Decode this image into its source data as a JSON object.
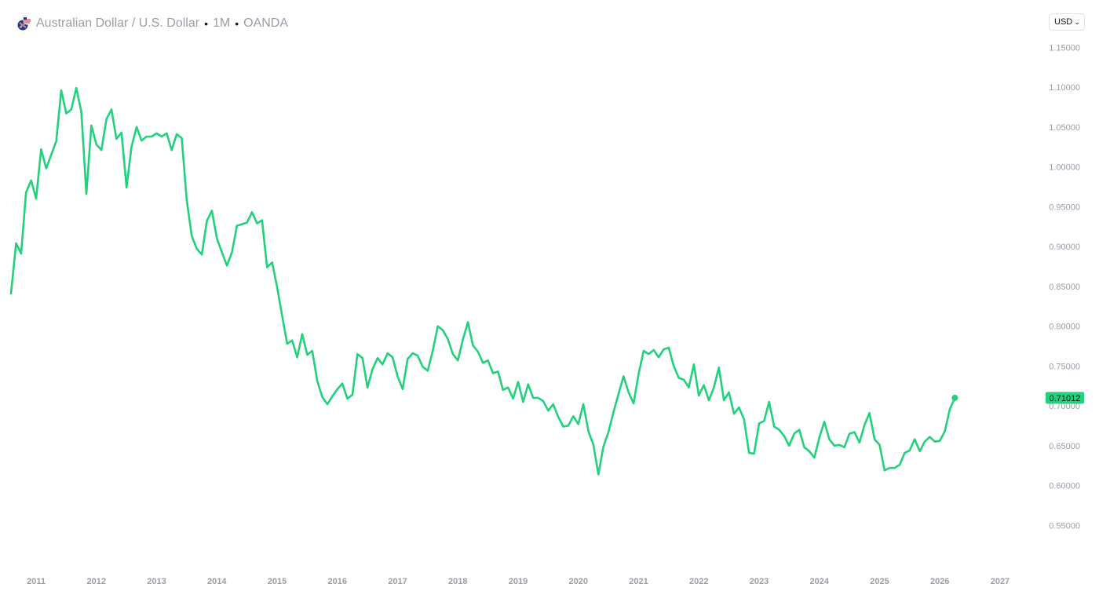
{
  "header": {
    "symbol_name": "Australian Dollar / U.S. Dollar",
    "interval": "1M",
    "source": "OANDA",
    "dot": "•"
  },
  "unit_selector": {
    "value": "USD",
    "chevron": "⌄"
  },
  "colors": {
    "line": "#22d17c",
    "last_label_bg": "#22d17c",
    "axis_text": "#9b9ea8"
  },
  "chart_data": {
    "type": "line",
    "title": "",
    "xlabel": "",
    "ylabel": "",
    "grid": false,
    "price_scale_position": "right",
    "x_range": [
      2010.4,
      2027.6
    ],
    "ylim": [
      0.505,
      1.17
    ],
    "y_ticks": [
      "1.15000",
      "1.10000",
      "1.05000",
      "1.00000",
      "0.95000",
      "0.90000",
      "0.85000",
      "0.80000",
      "0.75000",
      "0.70000",
      "0.65000",
      "0.60000",
      "0.55000"
    ],
    "y_tick_values": [
      1.15,
      1.1,
      1.05,
      1.0,
      0.95,
      0.9,
      0.85,
      0.8,
      0.75,
      0.7,
      0.65,
      0.6,
      0.55
    ],
    "x_ticks": [
      "2011",
      "2012",
      "2013",
      "2014",
      "2015",
      "2016",
      "2017",
      "2018",
      "2019",
      "2020",
      "2021",
      "2022",
      "2023",
      "2024",
      "2025",
      "2026",
      "2027"
    ],
    "x_tick_values": [
      2011,
      2012,
      2013,
      2014,
      2015,
      2016,
      2017,
      2018,
      2019,
      2020,
      2021,
      2022,
      2023,
      2024,
      2025,
      2026,
      2027
    ],
    "last_value_label": "0.71012",
    "series": [
      {
        "points": [
          [
            2010.583,
            0.841
          ],
          [
            2010.667,
            0.904
          ],
          [
            2010.75,
            0.891
          ],
          [
            2010.833,
            0.968
          ],
          [
            2010.917,
            0.983
          ],
          [
            2011.0,
            0.96
          ],
          [
            2011.083,
            1.022
          ],
          [
            2011.167,
            0.998
          ],
          [
            2011.25,
            1.015
          ],
          [
            2011.333,
            1.032
          ],
          [
            2011.417,
            1.096
          ],
          [
            2011.5,
            1.067
          ],
          [
            2011.583,
            1.072
          ],
          [
            2011.667,
            1.099
          ],
          [
            2011.75,
            1.069
          ],
          [
            2011.833,
            0.966
          ],
          [
            2011.917,
            1.052
          ],
          [
            2012.0,
            1.028
          ],
          [
            2012.083,
            1.021
          ],
          [
            2012.167,
            1.06
          ],
          [
            2012.25,
            1.072
          ],
          [
            2012.333,
            1.035
          ],
          [
            2012.417,
            1.043
          ],
          [
            2012.5,
            0.974
          ],
          [
            2012.583,
            1.025
          ],
          [
            2012.667,
            1.05
          ],
          [
            2012.75,
            1.033
          ],
          [
            2012.833,
            1.038
          ],
          [
            2012.917,
            1.038
          ],
          [
            2013.0,
            1.042
          ],
          [
            2013.083,
            1.038
          ],
          [
            2013.167,
            1.042
          ],
          [
            2013.25,
            1.021
          ],
          [
            2013.333,
            1.041
          ],
          [
            2013.417,
            1.036
          ],
          [
            2013.5,
            0.958
          ],
          [
            2013.583,
            0.913
          ],
          [
            2013.667,
            0.897
          ],
          [
            2013.75,
            0.89
          ],
          [
            2013.833,
            0.932
          ],
          [
            2013.917,
            0.945
          ],
          [
            2014.0,
            0.91
          ],
          [
            2014.083,
            0.893
          ],
          [
            2014.167,
            0.876
          ],
          [
            2014.25,
            0.893
          ],
          [
            2014.333,
            0.926
          ],
          [
            2014.417,
            0.928
          ],
          [
            2014.5,
            0.93
          ],
          [
            2014.583,
            0.943
          ],
          [
            2014.667,
            0.929
          ],
          [
            2014.75,
            0.933
          ],
          [
            2014.833,
            0.874
          ],
          [
            2014.917,
            0.88
          ],
          [
            2015.0,
            0.849
          ],
          [
            2015.083,
            0.813
          ],
          [
            2015.167,
            0.778
          ],
          [
            2015.25,
            0.782
          ],
          [
            2015.333,
            0.761
          ],
          [
            2015.417,
            0.79
          ],
          [
            2015.5,
            0.764
          ],
          [
            2015.583,
            0.769
          ],
          [
            2015.667,
            0.731
          ],
          [
            2015.75,
            0.711
          ],
          [
            2015.833,
            0.702
          ],
          [
            2015.917,
            0.712
          ],
          [
            2016.0,
            0.721
          ],
          [
            2016.083,
            0.728
          ],
          [
            2016.167,
            0.709
          ],
          [
            2016.25,
            0.714
          ],
          [
            2016.333,
            0.765
          ],
          [
            2016.417,
            0.76
          ],
          [
            2016.5,
            0.723
          ],
          [
            2016.583,
            0.746
          ],
          [
            2016.667,
            0.76
          ],
          [
            2016.75,
            0.752
          ],
          [
            2016.833,
            0.766
          ],
          [
            2016.917,
            0.761
          ],
          [
            2017.0,
            0.737
          ],
          [
            2017.083,
            0.721
          ],
          [
            2017.167,
            0.759
          ],
          [
            2017.25,
            0.766
          ],
          [
            2017.333,
            0.763
          ],
          [
            2017.417,
            0.749
          ],
          [
            2017.5,
            0.744
          ],
          [
            2017.583,
            0.769
          ],
          [
            2017.667,
            0.8
          ],
          [
            2017.75,
            0.795
          ],
          [
            2017.833,
            0.784
          ],
          [
            2017.917,
            0.765
          ],
          [
            2018.0,
            0.757
          ],
          [
            2018.083,
            0.783
          ],
          [
            2018.167,
            0.805
          ],
          [
            2018.25,
            0.776
          ],
          [
            2018.333,
            0.768
          ],
          [
            2018.417,
            0.754
          ],
          [
            2018.5,
            0.757
          ],
          [
            2018.583,
            0.741
          ],
          [
            2018.667,
            0.743
          ],
          [
            2018.75,
            0.72
          ],
          [
            2018.833,
            0.723
          ],
          [
            2018.917,
            0.709
          ],
          [
            2019.0,
            0.73
          ],
          [
            2019.083,
            0.705
          ],
          [
            2019.167,
            0.727
          ],
          [
            2019.25,
            0.71
          ],
          [
            2019.333,
            0.71
          ],
          [
            2019.417,
            0.706
          ],
          [
            2019.5,
            0.694
          ],
          [
            2019.583,
            0.702
          ],
          [
            2019.667,
            0.686
          ],
          [
            2019.75,
            0.674
          ],
          [
            2019.833,
            0.675
          ],
          [
            2019.917,
            0.687
          ],
          [
            2020.0,
            0.677
          ],
          [
            2020.083,
            0.702
          ],
          [
            2020.167,
            0.668
          ],
          [
            2020.25,
            0.651
          ],
          [
            2020.333,
            0.614
          ],
          [
            2020.417,
            0.649
          ],
          [
            2020.5,
            0.667
          ],
          [
            2020.583,
            0.692
          ],
          [
            2020.667,
            0.715
          ],
          [
            2020.75,
            0.737
          ],
          [
            2020.833,
            0.717
          ],
          [
            2020.917,
            0.703
          ],
          [
            2021.0,
            0.74
          ],
          [
            2021.083,
            0.769
          ],
          [
            2021.167,
            0.765
          ],
          [
            2021.25,
            0.77
          ],
          [
            2021.333,
            0.761
          ],
          [
            2021.417,
            0.771
          ],
          [
            2021.5,
            0.773
          ],
          [
            2021.583,
            0.75
          ],
          [
            2021.667,
            0.735
          ],
          [
            2021.75,
            0.733
          ],
          [
            2021.833,
            0.723
          ],
          [
            2021.917,
            0.752
          ],
          [
            2022.0,
            0.713
          ],
          [
            2022.083,
            0.726
          ],
          [
            2022.167,
            0.707
          ],
          [
            2022.25,
            0.723
          ],
          [
            2022.333,
            0.748
          ],
          [
            2022.417,
            0.707
          ],
          [
            2022.5,
            0.717
          ],
          [
            2022.583,
            0.69
          ],
          [
            2022.667,
            0.698
          ],
          [
            2022.75,
            0.683
          ],
          [
            2022.833,
            0.641
          ],
          [
            2022.917,
            0.64
          ],
          [
            2023.0,
            0.678
          ],
          [
            2023.083,
            0.681
          ],
          [
            2023.167,
            0.705
          ],
          [
            2023.25,
            0.674
          ],
          [
            2023.333,
            0.67
          ],
          [
            2023.417,
            0.662
          ],
          [
            2023.5,
            0.65
          ],
          [
            2023.583,
            0.665
          ],
          [
            2023.667,
            0.67
          ],
          [
            2023.75,
            0.648
          ],
          [
            2023.833,
            0.643
          ],
          [
            2023.917,
            0.635
          ],
          [
            2024.0,
            0.66
          ],
          [
            2024.083,
            0.68
          ],
          [
            2024.167,
            0.658
          ],
          [
            2024.25,
            0.65
          ],
          [
            2024.333,
            0.651
          ],
          [
            2024.417,
            0.648
          ],
          [
            2024.5,
            0.665
          ],
          [
            2024.583,
            0.667
          ],
          [
            2024.667,
            0.654
          ],
          [
            2024.75,
            0.676
          ],
          [
            2024.833,
            0.691
          ],
          [
            2024.917,
            0.658
          ],
          [
            2025.0,
            0.651
          ],
          [
            2025.083,
            0.619
          ],
          [
            2025.167,
            0.622
          ],
          [
            2025.25,
            0.622
          ],
          [
            2025.333,
            0.626
          ],
          [
            2025.417,
            0.641
          ],
          [
            2025.5,
            0.644
          ],
          [
            2025.583,
            0.658
          ],
          [
            2025.667,
            0.643
          ],
          [
            2025.75,
            0.655
          ],
          [
            2025.833,
            0.661
          ],
          [
            2025.917,
            0.655
          ],
          [
            2026.0,
            0.656
          ],
          [
            2026.083,
            0.668
          ],
          [
            2026.167,
            0.696
          ],
          [
            2026.25,
            0.71
          ]
        ]
      }
    ]
  }
}
